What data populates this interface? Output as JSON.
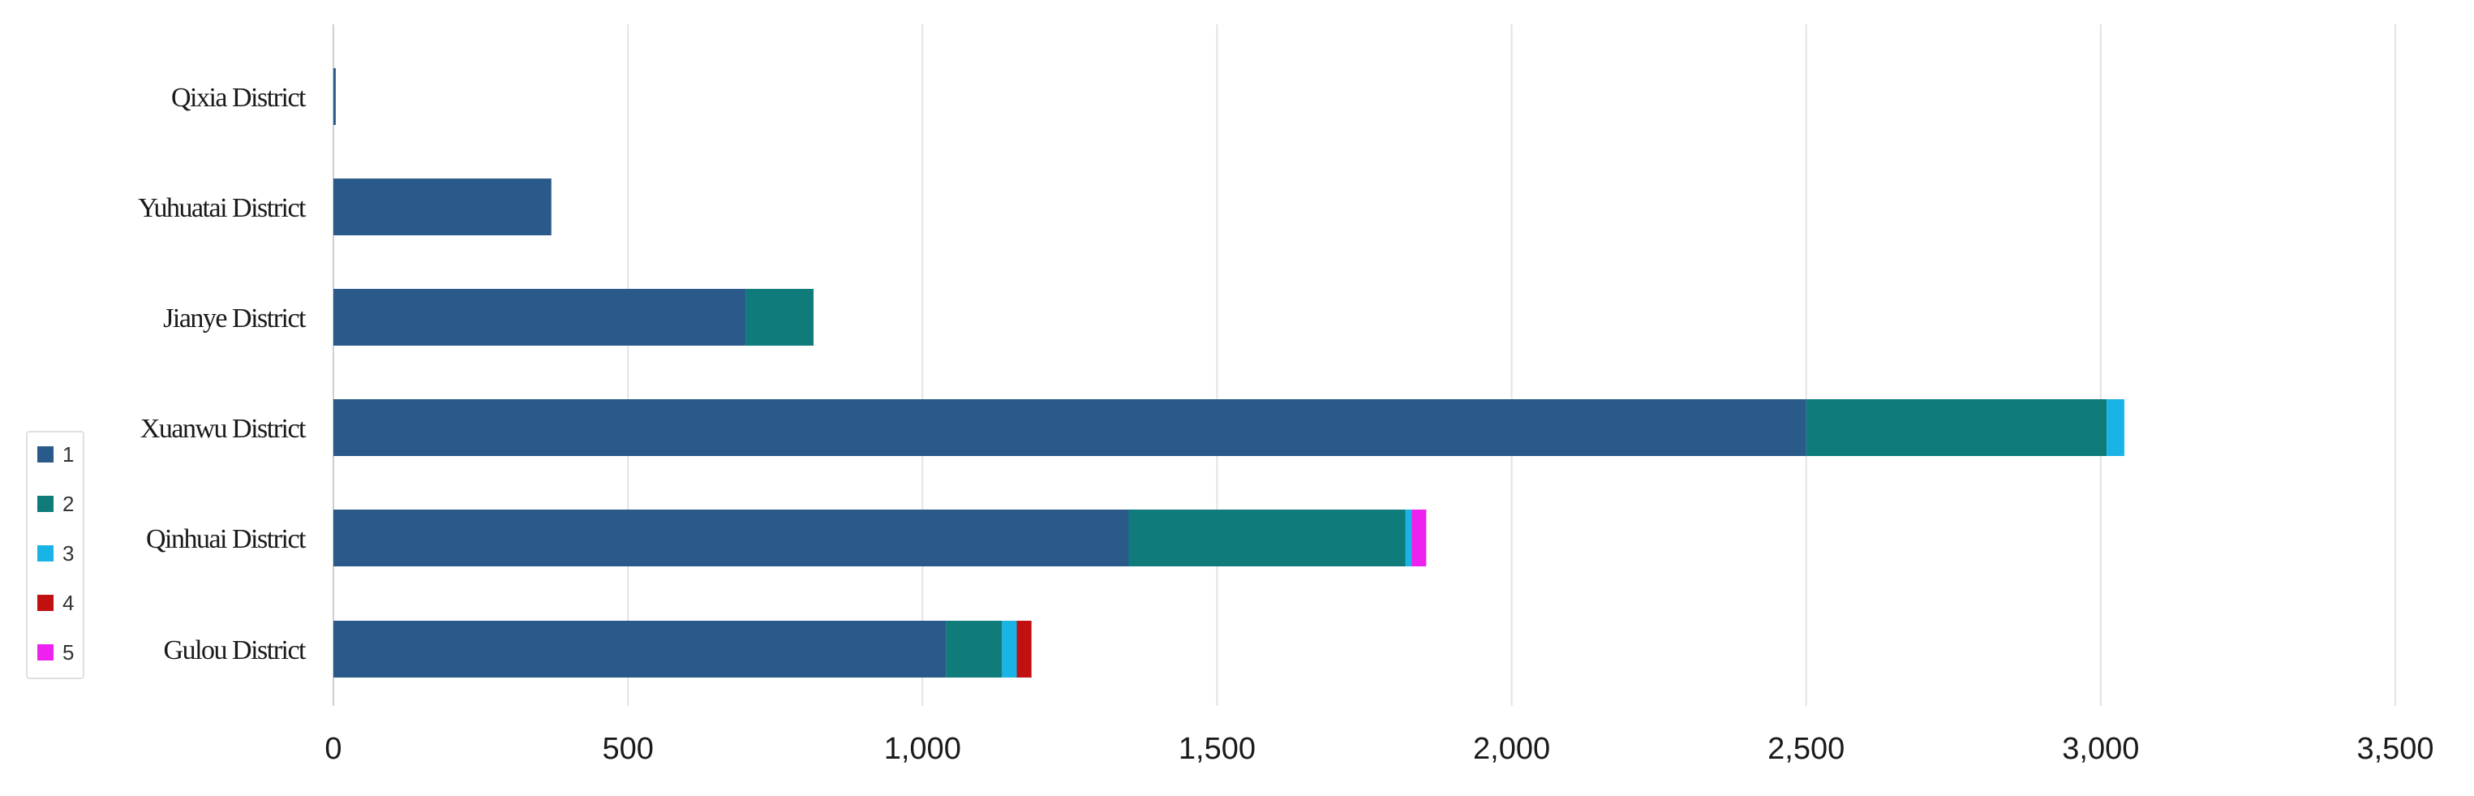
{
  "chart_data": {
    "type": "bar",
    "orientation": "horizontal",
    "stacked": true,
    "categories": [
      "Gulou District",
      "Qinhuai District",
      "Xuanwu District",
      "Jianye District",
      "Yuhuatai District",
      "Qixia District"
    ],
    "series": [
      {
        "name": "1",
        "color": "#2a5a8a",
        "values": [
          1040,
          1350,
          2500,
          700,
          370,
          4
        ]
      },
      {
        "name": "2",
        "color": "#0f7b7b",
        "values": [
          95,
          470,
          510,
          115,
          0,
          0
        ]
      },
      {
        "name": "3",
        "color": "#1ab3e6",
        "values": [
          25,
          10,
          30,
          0,
          0,
          0
        ]
      },
      {
        "name": "4",
        "color": "#c01010",
        "values": [
          25,
          0,
          0,
          0,
          0,
          0
        ]
      },
      {
        "name": "5",
        "color": "#ee22ee",
        "values": [
          0,
          25,
          0,
          0,
          0,
          0
        ]
      }
    ],
    "xlim": [
      0,
      3500
    ],
    "xticks": [
      0,
      500,
      1000,
      1500,
      2000,
      2500,
      3000,
      3500
    ],
    "xtick_labels": [
      "0",
      "500",
      "1,000",
      "1,500",
      "2,000",
      "2,500",
      "3,000",
      "3,500"
    ],
    "grid": true,
    "legend_position": "left"
  }
}
